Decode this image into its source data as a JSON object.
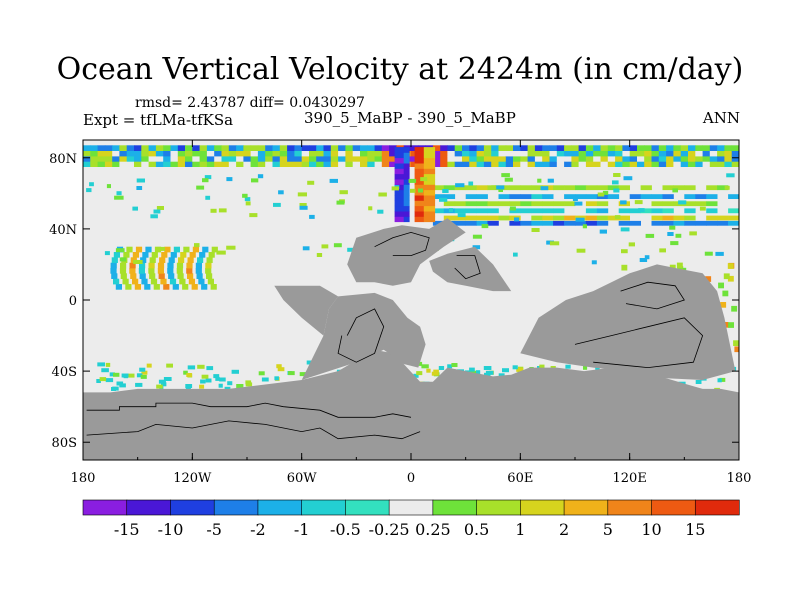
{
  "chart_data": {
    "type": "heatmap",
    "title": "Ocean Vertical Velocity at 2424m (in cm/day)",
    "stats": "rmsd= 2.43787 diff= 0.0430297",
    "left_label": "Expt = tfLMa-tfKSa",
    "center_label": "390_5_MaBP - 390_5_MaBP",
    "right_label": "ANN",
    "xlabel": "",
    "ylabel": "",
    "xlim": [
      -180,
      180
    ],
    "ylim": [
      -90,
      90
    ],
    "x_ticks": [
      {
        "value": -180,
        "label": "180"
      },
      {
        "value": -120,
        "label": "120W"
      },
      {
        "value": -60,
        "label": "60W"
      },
      {
        "value": 0,
        "label": "0"
      },
      {
        "value": 60,
        "label": "60E"
      },
      {
        "value": 120,
        "label": "120E"
      },
      {
        "value": 180,
        "label": "180"
      }
    ],
    "y_ticks": [
      {
        "value": 80,
        "label": "80N"
      },
      {
        "value": 40,
        "label": "40N"
      },
      {
        "value": 0,
        "label": "0"
      },
      {
        "value": -40,
        "label": "40S"
      },
      {
        "value": -80,
        "label": "80S"
      }
    ],
    "colorbar": {
      "labels": [
        "-15",
        "-10",
        "-5",
        "-2",
        "-1",
        "-0.5",
        "-0.25",
        "0.25",
        "0.5",
        "1",
        "2",
        "5",
        "10",
        "15"
      ],
      "colors": [
        "#8a1ee0",
        "#4a17d6",
        "#1f3fe0",
        "#1e7fe8",
        "#1cb0e8",
        "#23cfd2",
        "#33e0bf",
        "#ececec",
        "#6ee23a",
        "#a8e02a",
        "#d6d41e",
        "#f0b21a",
        "#f0841a",
        "#ee5a12",
        "#e02a0c"
      ]
    },
    "colors": {
      "land": "#9a9a9a",
      "neutral": "#ececec",
      "coast": "#000000"
    },
    "features": [
      {
        "name": "arctic band",
        "lon": [
          -180,
          180
        ],
        "lat": [
          75,
          87
        ],
        "sign": "mixed",
        "magnitude": "strong"
      },
      {
        "name": "north atlantic downwelling",
        "lon": [
          -10,
          0
        ],
        "lat": [
          45,
          80
        ],
        "sign": "negative",
        "magnitude": "-15"
      },
      {
        "name": "north atlantic upwelling",
        "lon": [
          0,
          15
        ],
        "lat": [
          45,
          85
        ],
        "sign": "positive",
        "magnitude": "15"
      },
      {
        "name": "eurasian zonal jets",
        "lon": [
          10,
          178
        ],
        "lat": [
          40,
          65
        ],
        "sign": "mixed",
        "magnitude": "moderate"
      },
      {
        "name": "tropical pacific wave train",
        "lon": [
          -165,
          -110
        ],
        "lat": [
          5,
          30
        ],
        "sign": "mixed",
        "magnitude": "-2 to 5"
      },
      {
        "name": "southern ring",
        "lon": [
          -170,
          180
        ],
        "lat": [
          -50,
          -35
        ],
        "sign": "mixed",
        "magnitude": "weak"
      },
      {
        "name": "south atlantic dipole",
        "lon": [
          -10,
          0
        ],
        "lat": [
          -48,
          -40
        ],
        "sign": "mixed",
        "magnitude": "10"
      }
    ]
  }
}
